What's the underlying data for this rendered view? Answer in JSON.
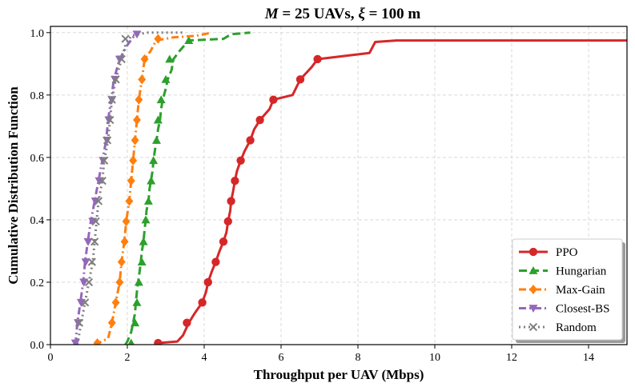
{
  "chart_data": {
    "type": "line",
    "title_parts": [
      "M",
      " = 25 UAVs, ",
      "ξ",
      " = 100 m"
    ],
    "xlabel": "Throughput per UAV (Mbps)",
    "ylabel": "Cumulative Distribution Function",
    "xlim": [
      0,
      15
    ],
    "ylim": [
      0,
      1.02
    ],
    "xticks": [
      0,
      2,
      4,
      6,
      8,
      10,
      12,
      14
    ],
    "xtick_labels": [
      "0",
      "2",
      "4",
      "6",
      "8",
      "10",
      "12",
      "14"
    ],
    "yticks": [
      0,
      0.2,
      0.4,
      0.6,
      0.8,
      1.0
    ],
    "ytick_labels": [
      "0.0",
      "0.2",
      "0.4",
      "0.6",
      "0.8",
      "1.0"
    ],
    "grid": true,
    "legend_position": "lower-right",
    "series": [
      {
        "name": "PPO",
        "color": "#d62728",
        "dash": "solid",
        "marker": "circle",
        "points": [
          [
            2.75,
            0
          ],
          [
            2.8,
            0.005
          ],
          [
            3.3,
            0.01
          ],
          [
            3.45,
            0.03
          ],
          [
            3.6,
            0.07
          ],
          [
            3.75,
            0.1
          ],
          [
            3.95,
            0.135
          ],
          [
            4.05,
            0.17
          ],
          [
            4.1,
            0.2
          ],
          [
            4.2,
            0.235
          ],
          [
            4.3,
            0.265
          ],
          [
            4.4,
            0.3
          ],
          [
            4.5,
            0.33
          ],
          [
            4.58,
            0.36
          ],
          [
            4.62,
            0.395
          ],
          [
            4.68,
            0.43
          ],
          [
            4.7,
            0.46
          ],
          [
            4.75,
            0.49
          ],
          [
            4.8,
            0.525
          ],
          [
            4.85,
            0.555
          ],
          [
            4.95,
            0.59
          ],
          [
            5.05,
            0.62
          ],
          [
            5.2,
            0.655
          ],
          [
            5.3,
            0.69
          ],
          [
            5.45,
            0.72
          ],
          [
            5.7,
            0.755
          ],
          [
            5.8,
            0.785
          ],
          [
            6.3,
            0.8
          ],
          [
            6.5,
            0.85
          ],
          [
            6.8,
            0.89
          ],
          [
            6.95,
            0.915
          ],
          [
            7.3,
            0.92
          ],
          [
            8.3,
            0.935
          ],
          [
            8.45,
            0.97
          ],
          [
            9,
            0.975
          ],
          [
            15,
            0.975
          ]
        ],
        "marker_points": [
          [
            2.8,
            0.005
          ],
          [
            3.55,
            0.07
          ],
          [
            3.95,
            0.135
          ],
          [
            4.1,
            0.2
          ],
          [
            4.3,
            0.265
          ],
          [
            4.5,
            0.33
          ],
          [
            4.62,
            0.395
          ],
          [
            4.7,
            0.46
          ],
          [
            4.8,
            0.525
          ],
          [
            4.95,
            0.59
          ],
          [
            5.2,
            0.655
          ],
          [
            5.45,
            0.72
          ],
          [
            5.8,
            0.785
          ],
          [
            6.5,
            0.85
          ],
          [
            6.95,
            0.915
          ]
        ]
      },
      {
        "name": "Hungarian",
        "color": "#2ca02c",
        "dash": "dashed",
        "marker": "triangle-up",
        "points": [
          [
            1.95,
            0
          ],
          [
            2.0,
            0.01
          ],
          [
            2.1,
            0.04
          ],
          [
            2.15,
            0.07
          ],
          [
            2.2,
            0.1
          ],
          [
            2.22,
            0.135
          ],
          [
            2.25,
            0.17
          ],
          [
            2.28,
            0.2
          ],
          [
            2.32,
            0.235
          ],
          [
            2.35,
            0.265
          ],
          [
            2.38,
            0.3
          ],
          [
            2.42,
            0.33
          ],
          [
            2.45,
            0.37
          ],
          [
            2.48,
            0.4
          ],
          [
            2.5,
            0.43
          ],
          [
            2.55,
            0.46
          ],
          [
            2.58,
            0.5
          ],
          [
            2.62,
            0.53
          ],
          [
            2.66,
            0.56
          ],
          [
            2.68,
            0.59
          ],
          [
            2.72,
            0.625
          ],
          [
            2.76,
            0.655
          ],
          [
            2.8,
            0.69
          ],
          [
            2.85,
            0.72
          ],
          [
            2.88,
            0.755
          ],
          [
            2.92,
            0.785
          ],
          [
            3.0,
            0.82
          ],
          [
            3.05,
            0.85
          ],
          [
            3.15,
            0.88
          ],
          [
            3.2,
            0.915
          ],
          [
            3.35,
            0.94
          ],
          [
            3.6,
            0.975
          ],
          [
            4.5,
            0.98
          ],
          [
            4.7,
            0.995
          ],
          [
            5.2,
            1.0
          ]
        ],
        "marker_points": [
          [
            2.1,
            0.005
          ],
          [
            2.2,
            0.07
          ],
          [
            2.25,
            0.135
          ],
          [
            2.3,
            0.2
          ],
          [
            2.38,
            0.265
          ],
          [
            2.42,
            0.33
          ],
          [
            2.48,
            0.4
          ],
          [
            2.55,
            0.46
          ],
          [
            2.62,
            0.525
          ],
          [
            2.68,
            0.59
          ],
          [
            2.76,
            0.655
          ],
          [
            2.8,
            0.72
          ],
          [
            2.88,
            0.785
          ],
          [
            3.0,
            0.85
          ],
          [
            3.1,
            0.915
          ],
          [
            3.6,
            0.975
          ]
        ]
      },
      {
        "name": "Max-Gain",
        "color": "#ff7f0e",
        "dash": "dashdot",
        "marker": "diamond",
        "points": [
          [
            1.15,
            0
          ],
          [
            1.25,
            0.005
          ],
          [
            1.5,
            0.02
          ],
          [
            1.6,
            0.07
          ],
          [
            1.7,
            0.135
          ],
          [
            1.8,
            0.2
          ],
          [
            1.85,
            0.265
          ],
          [
            1.92,
            0.33
          ],
          [
            1.97,
            0.395
          ],
          [
            2.05,
            0.46
          ],
          [
            2.1,
            0.525
          ],
          [
            2.15,
            0.59
          ],
          [
            2.2,
            0.655
          ],
          [
            2.25,
            0.72
          ],
          [
            2.3,
            0.785
          ],
          [
            2.38,
            0.85
          ],
          [
            2.45,
            0.915
          ],
          [
            2.6,
            0.94
          ],
          [
            2.75,
            0.975
          ],
          [
            3.2,
            0.985
          ],
          [
            3.8,
            0.99
          ],
          [
            4.2,
            1.0
          ]
        ],
        "marker_points": [
          [
            1.22,
            0.005
          ],
          [
            1.6,
            0.07
          ],
          [
            1.7,
            0.135
          ],
          [
            1.8,
            0.2
          ],
          [
            1.85,
            0.265
          ],
          [
            1.93,
            0.33
          ],
          [
            1.97,
            0.395
          ],
          [
            2.05,
            0.46
          ],
          [
            2.1,
            0.525
          ],
          [
            2.15,
            0.59
          ],
          [
            2.2,
            0.655
          ],
          [
            2.25,
            0.72
          ],
          [
            2.3,
            0.785
          ],
          [
            2.38,
            0.85
          ],
          [
            2.45,
            0.915
          ],
          [
            2.8,
            0.98
          ]
        ]
      },
      {
        "name": "Closest-BS",
        "color": "#9467bd",
        "dash": "dashdot",
        "marker": "triangle-down",
        "points": [
          [
            0.65,
            0
          ],
          [
            0.7,
            0.07
          ],
          [
            0.78,
            0.135
          ],
          [
            0.85,
            0.2
          ],
          [
            0.9,
            0.265
          ],
          [
            0.97,
            0.33
          ],
          [
            1.05,
            0.395
          ],
          [
            1.15,
            0.46
          ],
          [
            1.25,
            0.525
          ],
          [
            1.35,
            0.59
          ],
          [
            1.45,
            0.655
          ],
          [
            1.5,
            0.72
          ],
          [
            1.58,
            0.785
          ],
          [
            1.65,
            0.85
          ],
          [
            1.8,
            0.915
          ],
          [
            2.0,
            0.96
          ],
          [
            2.15,
            0.985
          ],
          [
            2.25,
            1.0
          ]
        ],
        "marker_points": [
          [
            0.65,
            0.005
          ],
          [
            0.72,
            0.07
          ],
          [
            0.8,
            0.135
          ],
          [
            0.87,
            0.2
          ],
          [
            0.92,
            0.265
          ],
          [
            0.98,
            0.33
          ],
          [
            1.1,
            0.395
          ],
          [
            1.17,
            0.46
          ],
          [
            1.27,
            0.525
          ],
          [
            1.37,
            0.59
          ],
          [
            1.47,
            0.655
          ],
          [
            1.52,
            0.72
          ],
          [
            1.6,
            0.785
          ],
          [
            1.68,
            0.85
          ],
          [
            1.8,
            0.915
          ],
          [
            2.25,
            0.995
          ]
        ]
      },
      {
        "name": "Random",
        "color": "#7f7f7f",
        "dash": "dotted",
        "marker": "x",
        "points": [
          [
            0.7,
            0
          ],
          [
            0.8,
            0.07
          ],
          [
            0.9,
            0.135
          ],
          [
            1.0,
            0.2
          ],
          [
            1.1,
            0.265
          ],
          [
            1.15,
            0.33
          ],
          [
            1.2,
            0.395
          ],
          [
            1.25,
            0.46
          ],
          [
            1.35,
            0.525
          ],
          [
            1.4,
            0.59
          ],
          [
            1.5,
            0.655
          ],
          [
            1.55,
            0.72
          ],
          [
            1.6,
            0.785
          ],
          [
            1.7,
            0.85
          ],
          [
            1.85,
            0.915
          ],
          [
            1.95,
            0.96
          ],
          [
            2.1,
            0.99
          ],
          [
            2.5,
            1.0
          ],
          [
            3.5,
            1.0
          ]
        ],
        "marker_points": [
          [
            0.75,
            0.07
          ],
          [
            0.9,
            0.135
          ],
          [
            1.0,
            0.2
          ],
          [
            1.08,
            0.265
          ],
          [
            1.15,
            0.33
          ],
          [
            1.18,
            0.395
          ],
          [
            1.25,
            0.46
          ],
          [
            1.35,
            0.525
          ],
          [
            1.4,
            0.59
          ],
          [
            1.48,
            0.655
          ],
          [
            1.55,
            0.72
          ],
          [
            1.6,
            0.785
          ],
          [
            1.7,
            0.85
          ],
          [
            1.85,
            0.915
          ],
          [
            1.95,
            0.98
          ]
        ]
      }
    ]
  }
}
